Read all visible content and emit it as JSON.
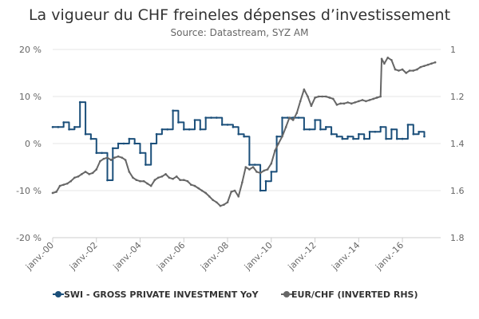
{
  "chart_data": {
    "type": "line",
    "title": "La vigueur du CHF freineles dépenses d’investissement",
    "subtitle": "Source: Datastream, SYZ AM",
    "x_tick_labels": [
      "janv.-00",
      "janv.-02",
      "janv.-04",
      "janv.-06",
      "janv.-08",
      "janv.-10",
      "janv.-12",
      "janv.-14",
      "janv.-16"
    ],
    "x_range": [
      2000.0,
      2017.75
    ],
    "y_left": {
      "tick_labels": [
        "20 %",
        "10 %",
        "0 %",
        "-10 %",
        "-20 %"
      ],
      "tick_values": [
        20,
        10,
        0,
        -10,
        -20
      ],
      "range": [
        -20,
        20
      ]
    },
    "y_right": {
      "tick_labels": [
        "1",
        "1.2",
        "1.4",
        "1.6",
        "1.8"
      ],
      "tick_values": [
        1.0,
        1.2,
        1.4,
        1.6,
        1.8
      ],
      "range": [
        1.0,
        1.8
      ],
      "inverted": true
    },
    "grid": true,
    "legend_position": "bottom",
    "series": [
      {
        "name": "SWI - GROSS PRIVATE INVESTMENT YoY",
        "axis": "left",
        "color": "#1b4f7a",
        "markers": true,
        "step": true,
        "points": [
          [
            2000.0,
            3.5
          ],
          [
            2000.25,
            3.5
          ],
          [
            2000.5,
            4.5
          ],
          [
            2000.75,
            3.0
          ],
          [
            2001.0,
            3.5
          ],
          [
            2001.25,
            8.8
          ],
          [
            2001.5,
            2.0
          ],
          [
            2001.75,
            1.0
          ],
          [
            2002.0,
            -2.0
          ],
          [
            2002.25,
            -2.0
          ],
          [
            2002.5,
            -7.8
          ],
          [
            2002.75,
            -1.0
          ],
          [
            2003.0,
            0.0
          ],
          [
            2003.25,
            0.0
          ],
          [
            2003.5,
            1.0
          ],
          [
            2003.75,
            0.0
          ],
          [
            2004.0,
            -2.0
          ],
          [
            2004.25,
            -4.5
          ],
          [
            2004.5,
            0.0
          ],
          [
            2004.75,
            2.0
          ],
          [
            2005.0,
            3.0
          ],
          [
            2005.25,
            3.0
          ],
          [
            2005.5,
            7.0
          ],
          [
            2005.75,
            4.5
          ],
          [
            2006.0,
            3.0
          ],
          [
            2006.25,
            3.0
          ],
          [
            2006.5,
            5.0
          ],
          [
            2006.75,
            3.0
          ],
          [
            2007.0,
            5.5
          ],
          [
            2007.25,
            5.5
          ],
          [
            2007.5,
            5.5
          ],
          [
            2007.75,
            4.0
          ],
          [
            2008.0,
            4.0
          ],
          [
            2008.25,
            3.5
          ],
          [
            2008.5,
            2.0
          ],
          [
            2008.75,
            1.5
          ],
          [
            2009.0,
            -4.5
          ],
          [
            2009.25,
            -4.5
          ],
          [
            2009.5,
            -10.0
          ],
          [
            2009.75,
            -8.0
          ],
          [
            2010.0,
            -6.0
          ],
          [
            2010.25,
            1.5
          ],
          [
            2010.5,
            5.5
          ],
          [
            2010.75,
            5.5
          ],
          [
            2011.0,
            5.5
          ],
          [
            2011.25,
            5.5
          ],
          [
            2011.5,
            3.0
          ],
          [
            2011.75,
            3.0
          ],
          [
            2012.0,
            5.0
          ],
          [
            2012.25,
            3.0
          ],
          [
            2012.5,
            3.5
          ],
          [
            2012.75,
            2.0
          ],
          [
            2013.0,
            1.5
          ],
          [
            2013.25,
            1.0
          ],
          [
            2013.5,
            1.5
          ],
          [
            2013.75,
            1.0
          ],
          [
            2014.0,
            2.0
          ],
          [
            2014.25,
            1.0
          ],
          [
            2014.5,
            2.5
          ],
          [
            2014.75,
            2.5
          ],
          [
            2015.0,
            3.5
          ],
          [
            2015.25,
            1.0
          ],
          [
            2015.5,
            3.0
          ],
          [
            2015.75,
            1.0
          ],
          [
            2016.0,
            1.0
          ],
          [
            2016.25,
            4.0
          ],
          [
            2016.5,
            2.0
          ],
          [
            2016.75,
            2.5
          ],
          [
            2017.0,
            1.5
          ]
        ]
      },
      {
        "name": "EUR/CHF (INVERTED RHS)",
        "axis": "right",
        "color": "#666666",
        "markers": true,
        "step": false,
        "points": [
          [
            2000.0,
            1.61
          ],
          [
            2000.17,
            1.605
          ],
          [
            2000.33,
            1.58
          ],
          [
            2000.5,
            1.575
          ],
          [
            2000.67,
            1.57
          ],
          [
            2000.83,
            1.56
          ],
          [
            2001.0,
            1.545
          ],
          [
            2001.17,
            1.54
          ],
          [
            2001.33,
            1.53
          ],
          [
            2001.5,
            1.52
          ],
          [
            2001.67,
            1.53
          ],
          [
            2001.83,
            1.525
          ],
          [
            2002.0,
            1.51
          ],
          [
            2002.17,
            1.475
          ],
          [
            2002.33,
            1.465
          ],
          [
            2002.5,
            1.46
          ],
          [
            2002.67,
            1.47
          ],
          [
            2002.83,
            1.46
          ],
          [
            2003.0,
            1.455
          ],
          [
            2003.17,
            1.46
          ],
          [
            2003.33,
            1.47
          ],
          [
            2003.5,
            1.52
          ],
          [
            2003.67,
            1.545
          ],
          [
            2003.83,
            1.555
          ],
          [
            2004.0,
            1.56
          ],
          [
            2004.17,
            1.56
          ],
          [
            2004.33,
            1.57
          ],
          [
            2004.5,
            1.58
          ],
          [
            2004.67,
            1.555
          ],
          [
            2004.83,
            1.545
          ],
          [
            2005.0,
            1.54
          ],
          [
            2005.17,
            1.53
          ],
          [
            2005.33,
            1.545
          ],
          [
            2005.5,
            1.55
          ],
          [
            2005.67,
            1.54
          ],
          [
            2005.83,
            1.555
          ],
          [
            2006.0,
            1.555
          ],
          [
            2006.17,
            1.56
          ],
          [
            2006.33,
            1.575
          ],
          [
            2006.5,
            1.58
          ],
          [
            2006.67,
            1.59
          ],
          [
            2006.83,
            1.6
          ],
          [
            2007.0,
            1.61
          ],
          [
            2007.17,
            1.625
          ],
          [
            2007.33,
            1.64
          ],
          [
            2007.5,
            1.65
          ],
          [
            2007.67,
            1.665
          ],
          [
            2007.83,
            1.66
          ],
          [
            2008.0,
            1.65
          ],
          [
            2008.17,
            1.605
          ],
          [
            2008.33,
            1.6
          ],
          [
            2008.5,
            1.625
          ],
          [
            2008.67,
            1.565
          ],
          [
            2008.83,
            1.5
          ],
          [
            2009.0,
            1.51
          ],
          [
            2009.17,
            1.5
          ],
          [
            2009.33,
            1.52
          ],
          [
            2009.5,
            1.525
          ],
          [
            2009.67,
            1.515
          ],
          [
            2009.83,
            1.51
          ],
          [
            2010.0,
            1.485
          ],
          [
            2010.17,
            1.43
          ],
          [
            2010.33,
            1.4
          ],
          [
            2010.5,
            1.37
          ],
          [
            2010.67,
            1.33
          ],
          [
            2010.83,
            1.29
          ],
          [
            2011.0,
            1.3
          ],
          [
            2011.17,
            1.27
          ],
          [
            2011.33,
            1.22
          ],
          [
            2011.5,
            1.17
          ],
          [
            2011.67,
            1.2
          ],
          [
            2011.83,
            1.24
          ],
          [
            2012.0,
            1.205
          ],
          [
            2012.17,
            1.2
          ],
          [
            2012.33,
            1.2
          ],
          [
            2012.5,
            1.2
          ],
          [
            2012.67,
            1.205
          ],
          [
            2012.83,
            1.21
          ],
          [
            2013.0,
            1.235
          ],
          [
            2013.17,
            1.23
          ],
          [
            2013.33,
            1.23
          ],
          [
            2013.5,
            1.225
          ],
          [
            2013.67,
            1.23
          ],
          [
            2013.83,
            1.225
          ],
          [
            2014.0,
            1.22
          ],
          [
            2014.17,
            1.215
          ],
          [
            2014.33,
            1.22
          ],
          [
            2014.5,
            1.215
          ],
          [
            2014.67,
            1.21
          ],
          [
            2014.83,
            1.205
          ],
          [
            2015.0,
            1.2
          ],
          [
            2015.05,
            1.04
          ],
          [
            2015.17,
            1.06
          ],
          [
            2015.33,
            1.035
          ],
          [
            2015.5,
            1.045
          ],
          [
            2015.67,
            1.085
          ],
          [
            2015.83,
            1.09
          ],
          [
            2016.0,
            1.085
          ],
          [
            2016.17,
            1.1
          ],
          [
            2016.33,
            1.09
          ],
          [
            2016.5,
            1.09
          ],
          [
            2016.67,
            1.085
          ],
          [
            2016.83,
            1.075
          ],
          [
            2017.0,
            1.07
          ],
          [
            2017.17,
            1.065
          ],
          [
            2017.33,
            1.06
          ],
          [
            2017.5,
            1.055
          ]
        ]
      }
    ]
  }
}
